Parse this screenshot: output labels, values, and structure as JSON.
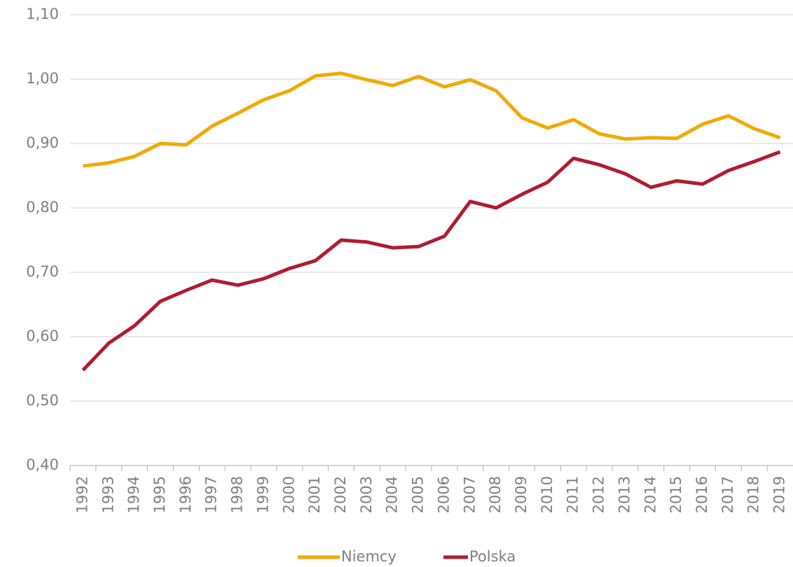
{
  "chart_data": {
    "type": "line",
    "categories": [
      "1992",
      "1993",
      "1994",
      "1995",
      "1996",
      "1997",
      "1998",
      "1999",
      "2000",
      "2001",
      "2002",
      "2003",
      "2004",
      "2005",
      "2006",
      "2007",
      "2008",
      "2009",
      "2010",
      "2011",
      "2012",
      "2013",
      "2014",
      "2015",
      "2016",
      "2017",
      "2018",
      "2019"
    ],
    "series": [
      {
        "name": "Niemcy",
        "color": "#f2a900",
        "values": [
          0.865,
          0.87,
          0.88,
          0.9,
          0.898,
          0.927,
          0.947,
          0.968,
          0.982,
          1.005,
          1.009,
          0.999,
          0.99,
          1.004,
          0.988,
          0.999,
          0.982,
          0.94,
          0.924,
          0.937,
          0.915,
          0.907,
          0.909,
          0.908,
          0.93,
          0.943,
          0.923,
          0.909
        ]
      },
      {
        "name": "Polska",
        "color": "#b01c2e",
        "values": [
          0.548,
          0.59,
          0.617,
          0.655,
          0.672,
          0.688,
          0.68,
          0.69,
          0.706,
          0.718,
          0.75,
          0.747,
          0.738,
          0.74,
          0.756,
          0.81,
          0.8,
          0.821,
          0.84,
          0.877,
          0.867,
          0.853,
          0.832,
          0.842,
          0.837,
          0.858,
          0.872,
          0.887
        ]
      }
    ],
    "ylim": [
      0.4,
      1.1
    ],
    "yticks": [
      {
        "value": 0.4,
        "label": "0,40"
      },
      {
        "value": 0.5,
        "label": "0,50"
      },
      {
        "value": 0.6,
        "label": "0,60"
      },
      {
        "value": 0.7,
        "label": "0,70"
      },
      {
        "value": 0.8,
        "label": "0,80"
      },
      {
        "value": 0.9,
        "label": "0,90"
      },
      {
        "value": 1.0,
        "label": "1,00"
      },
      {
        "value": 1.1,
        "label": "1,10"
      }
    ],
    "grid": true,
    "legend": "bottom"
  }
}
